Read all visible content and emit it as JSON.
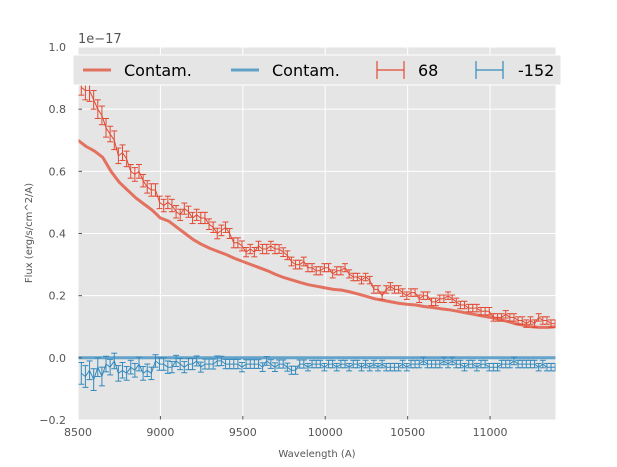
{
  "chart_data": {
    "type": "line",
    "xlabel": "Wavelength (A)",
    "ylabel": "Flux (erg/s/cm^2/A)",
    "offset_label": "1e−17",
    "xlim": [
      8500,
      11400
    ],
    "ylim": [
      -0.2,
      1.0
    ],
    "x_ticks": [
      8500,
      9000,
      9500,
      10000,
      10500,
      11000
    ],
    "x_tick_labels": [
      "8500",
      "9000",
      "9500",
      "10000",
      "10500",
      "11000"
    ],
    "y_ticks": [
      -0.2,
      0.0,
      0.2,
      0.4,
      0.6,
      0.8,
      1.0
    ],
    "y_tick_labels": [
      "−0.2",
      "0.0",
      "0.2",
      "0.4",
      "0.6",
      "0.8",
      "1.0"
    ],
    "grid": true,
    "legend_position": "top",
    "colors": {
      "red": "#e24a33",
      "blue": "#348abd",
      "background": "#e5e5e5"
    },
    "series": [
      {
        "name": "Contam.",
        "kind": "line",
        "color": "#e24a33",
        "x": [
          8500,
          8550,
          8600,
          8650,
          8700,
          8750,
          8800,
          8850,
          8900,
          8950,
          9000,
          9050,
          9100,
          9150,
          9200,
          9250,
          9300,
          9350,
          9400,
          9450,
          9500,
          9550,
          9600,
          9650,
          9700,
          9750,
          9800,
          9850,
          9900,
          9950,
          10000,
          10050,
          10100,
          10150,
          10200,
          10250,
          10300,
          10350,
          10400,
          10450,
          10500,
          10550,
          10600,
          10650,
          10700,
          10750,
          10800,
          10850,
          10900,
          10950,
          11000,
          11050,
          11100,
          11150,
          11200,
          11250,
          11300,
          11350,
          11400
        ],
        "values": [
          0.7,
          0.68,
          0.665,
          0.645,
          0.6,
          0.565,
          0.54,
          0.515,
          0.495,
          0.475,
          0.45,
          0.44,
          0.42,
          0.4,
          0.38,
          0.365,
          0.352,
          0.342,
          0.332,
          0.32,
          0.31,
          0.3,
          0.29,
          0.28,
          0.268,
          0.258,
          0.25,
          0.242,
          0.235,
          0.23,
          0.225,
          0.22,
          0.218,
          0.212,
          0.205,
          0.198,
          0.19,
          0.185,
          0.18,
          0.175,
          0.172,
          0.17,
          0.165,
          0.162,
          0.158,
          0.155,
          0.15,
          0.145,
          0.14,
          0.135,
          0.13,
          0.125,
          0.118,
          0.11,
          0.105,
          0.1,
          0.098,
          0.098,
          0.1
        ]
      },
      {
        "name": "Contam.",
        "kind": "line",
        "color": "#348abd",
        "x": [
          8500,
          11400
        ],
        "values": [
          0.0,
          0.0
        ]
      },
      {
        "name": "68",
        "kind": "errorbar",
        "color": "#e24a33",
        "x": [
          8520,
          8545,
          8570,
          8595,
          8620,
          8645,
          8670,
          8695,
          8720,
          8745,
          8770,
          8795,
          8820,
          8845,
          8870,
          8895,
          8920,
          8945,
          8970,
          8995,
          9020,
          9045,
          9070,
          9095,
          9120,
          9145,
          9170,
          9195,
          9220,
          9245,
          9270,
          9295,
          9320,
          9345,
          9370,
          9395,
          9420,
          9445,
          9470,
          9495,
          9520,
          9545,
          9570,
          9595,
          9620,
          9645,
          9670,
          9695,
          9720,
          9745,
          9770,
          9795,
          9820,
          9845,
          9870,
          9895,
          9920,
          9945,
          9970,
          9995,
          10020,
          10045,
          10070,
          10095,
          10120,
          10145,
          10170,
          10195,
          10220,
          10245,
          10270,
          10295,
          10320,
          10345,
          10370,
          10395,
          10420,
          10445,
          10470,
          10495,
          10520,
          10545,
          10570,
          10595,
          10620,
          10645,
          10670,
          10695,
          10720,
          10745,
          10770,
          10795,
          10820,
          10845,
          10870,
          10895,
          10920,
          10945,
          10970,
          10995,
          11020,
          11045,
          11070,
          11095,
          11120,
          11145,
          11170,
          11195,
          11220,
          11245,
          11270,
          11295,
          11320,
          11345,
          11370,
          11395
        ],
        "values": [
          0.87,
          0.86,
          0.86,
          0.83,
          0.8,
          0.78,
          0.74,
          0.72,
          0.7,
          0.65,
          0.66,
          0.64,
          0.6,
          0.59,
          0.6,
          0.57,
          0.55,
          0.54,
          0.54,
          0.5,
          0.49,
          0.5,
          0.49,
          0.47,
          0.46,
          0.48,
          0.47,
          0.45,
          0.46,
          0.45,
          0.45,
          0.43,
          0.42,
          0.4,
          0.41,
          0.42,
          0.4,
          0.37,
          0.37,
          0.36,
          0.34,
          0.35,
          0.34,
          0.36,
          0.35,
          0.35,
          0.36,
          0.35,
          0.35,
          0.34,
          0.33,
          0.31,
          0.3,
          0.3,
          0.31,
          0.29,
          0.29,
          0.28,
          0.28,
          0.29,
          0.29,
          0.27,
          0.28,
          0.28,
          0.29,
          0.27,
          0.26,
          0.26,
          0.25,
          0.26,
          0.25,
          0.22,
          0.22,
          0.2,
          0.22,
          0.23,
          0.22,
          0.22,
          0.21,
          0.2,
          0.21,
          0.21,
          0.19,
          0.2,
          0.2,
          0.18,
          0.18,
          0.19,
          0.19,
          0.2,
          0.19,
          0.18,
          0.17,
          0.17,
          0.16,
          0.16,
          0.16,
          0.15,
          0.15,
          0.15,
          0.13,
          0.13,
          0.13,
          0.14,
          0.13,
          0.13,
          0.12,
          0.12,
          0.11,
          0.12,
          0.11,
          0.13,
          0.12,
          0.12,
          0.11,
          0.11
        ],
        "errors": [
          0.025,
          0.03,
          0.035,
          0.03,
          0.03,
          0.03,
          0.03,
          0.025,
          0.03,
          0.025,
          0.025,
          0.025,
          0.022,
          0.022,
          0.022,
          0.02,
          0.02,
          0.02,
          0.02,
          0.02,
          0.02,
          0.02,
          0.02,
          0.02,
          0.018,
          0.018,
          0.018,
          0.018,
          0.018,
          0.018,
          0.018,
          0.017,
          0.017,
          0.017,
          0.017,
          0.017,
          0.016,
          0.016,
          0.016,
          0.016,
          0.015,
          0.015,
          0.015,
          0.015,
          0.015,
          0.015,
          0.015,
          0.015,
          0.014,
          0.014,
          0.014,
          0.014,
          0.014,
          0.014,
          0.014,
          0.013,
          0.013,
          0.013,
          0.013,
          0.013,
          0.013,
          0.013,
          0.013,
          0.013,
          0.013,
          0.013,
          0.012,
          0.012,
          0.012,
          0.012,
          0.012,
          0.012,
          0.012,
          0.012,
          0.012,
          0.012,
          0.012,
          0.012,
          0.012,
          0.012,
          0.012,
          0.012,
          0.012,
          0.012,
          0.012,
          0.012,
          0.012,
          0.012,
          0.012,
          0.012,
          0.012,
          0.012,
          0.012,
          0.012,
          0.012,
          0.012,
          0.012,
          0.012,
          0.012,
          0.012,
          0.012,
          0.012,
          0.012,
          0.012,
          0.012,
          0.012,
          0.012,
          0.012,
          0.012,
          0.012,
          0.012,
          0.012,
          0.012,
          0.012,
          0.012,
          0.012
        ]
      },
      {
        "name": "-152",
        "kind": "errorbar",
        "color": "#348abd",
        "x": [
          8520,
          8545,
          8570,
          8595,
          8620,
          8645,
          8670,
          8695,
          8720,
          8745,
          8770,
          8795,
          8820,
          8845,
          8870,
          8895,
          8920,
          8945,
          8970,
          8995,
          9020,
          9045,
          9070,
          9095,
          9120,
          9145,
          9170,
          9195,
          9220,
          9245,
          9270,
          9295,
          9320,
          9345,
          9370,
          9395,
          9420,
          9445,
          9470,
          9495,
          9520,
          9545,
          9570,
          9595,
          9620,
          9645,
          9670,
          9695,
          9720,
          9745,
          9770,
          9795,
          9820,
          9845,
          9870,
          9895,
          9920,
          9945,
          9970,
          9995,
          10020,
          10045,
          10070,
          10095,
          10120,
          10145,
          10170,
          10195,
          10220,
          10245,
          10270,
          10295,
          10320,
          10345,
          10370,
          10395,
          10420,
          10445,
          10470,
          10495,
          10520,
          10545,
          10570,
          10595,
          10620,
          10645,
          10670,
          10695,
          10720,
          10745,
          10770,
          10795,
          10820,
          10845,
          10870,
          10895,
          10920,
          10945,
          10970,
          10995,
          11020,
          11045,
          11070,
          11095,
          11120,
          11145,
          11170,
          11195,
          11220,
          11245,
          11270,
          11295,
          11320,
          11345,
          11370,
          11395
        ],
        "values": [
          -0.05,
          -0.06,
          -0.04,
          -0.07,
          -0.03,
          -0.06,
          -0.02,
          -0.03,
          -0.01,
          -0.05,
          -0.04,
          -0.05,
          -0.03,
          -0.04,
          -0.02,
          -0.05,
          -0.04,
          -0.05,
          -0.01,
          -0.02,
          -0.02,
          -0.03,
          -0.03,
          -0.01,
          -0.02,
          -0.03,
          -0.02,
          -0.02,
          -0.01,
          -0.03,
          -0.02,
          -0.02,
          -0.02,
          -0.01,
          -0.01,
          -0.02,
          -0.02,
          -0.02,
          -0.02,
          -0.03,
          -0.02,
          -0.02,
          -0.02,
          -0.02,
          -0.03,
          -0.01,
          -0.02,
          -0.03,
          -0.02,
          -0.02,
          -0.03,
          -0.04,
          -0.04,
          -0.02,
          -0.02,
          -0.03,
          -0.02,
          -0.02,
          -0.02,
          -0.03,
          -0.02,
          -0.02,
          -0.03,
          -0.02,
          -0.02,
          -0.03,
          -0.02,
          -0.02,
          -0.03,
          -0.02,
          -0.03,
          -0.02,
          -0.03,
          -0.02,
          -0.03,
          -0.03,
          -0.03,
          -0.03,
          -0.02,
          -0.03,
          -0.02,
          -0.02,
          -0.02,
          -0.01,
          -0.02,
          -0.02,
          -0.02,
          -0.02,
          -0.01,
          -0.02,
          -0.01,
          -0.02,
          -0.02,
          -0.03,
          -0.02,
          -0.02,
          -0.03,
          -0.02,
          -0.02,
          -0.03,
          -0.03,
          -0.03,
          -0.02,
          -0.02,
          -0.02,
          -0.01,
          -0.02,
          -0.02,
          -0.02,
          -0.02,
          -0.02,
          -0.03,
          -0.02,
          -0.03,
          -0.03,
          -0.03
        ],
        "errors": [
          0.035,
          0.035,
          0.03,
          0.035,
          0.03,
          0.03,
          0.025,
          0.025,
          0.025,
          0.025,
          0.025,
          0.022,
          0.022,
          0.022,
          0.022,
          0.022,
          0.02,
          0.02,
          0.02,
          0.02,
          0.02,
          0.02,
          0.018,
          0.018,
          0.018,
          0.018,
          0.018,
          0.018,
          0.016,
          0.016,
          0.016,
          0.016,
          0.016,
          0.016,
          0.015,
          0.015,
          0.015,
          0.015,
          0.015,
          0.015,
          0.014,
          0.014,
          0.014,
          0.014,
          0.014,
          0.014,
          0.014,
          0.014,
          0.013,
          0.013,
          0.013,
          0.013,
          0.013,
          0.013,
          0.013,
          0.012,
          0.012,
          0.012,
          0.012,
          0.012,
          0.012,
          0.012,
          0.012,
          0.012,
          0.012,
          0.012,
          0.012,
          0.012,
          0.012,
          0.012,
          0.012,
          0.012,
          0.012,
          0.012,
          0.012,
          0.012,
          0.012,
          0.012,
          0.012,
          0.012,
          0.012,
          0.012,
          0.012,
          0.012,
          0.012,
          0.012,
          0.012,
          0.012,
          0.012,
          0.012,
          0.012,
          0.012,
          0.012,
          0.012,
          0.012,
          0.012,
          0.012,
          0.012,
          0.012,
          0.012,
          0.012,
          0.012,
          0.012,
          0.012,
          0.012,
          0.012,
          0.012,
          0.012,
          0.012,
          0.012,
          0.012,
          0.012,
          0.012,
          0.012,
          0.012,
          0.012
        ]
      }
    ]
  }
}
